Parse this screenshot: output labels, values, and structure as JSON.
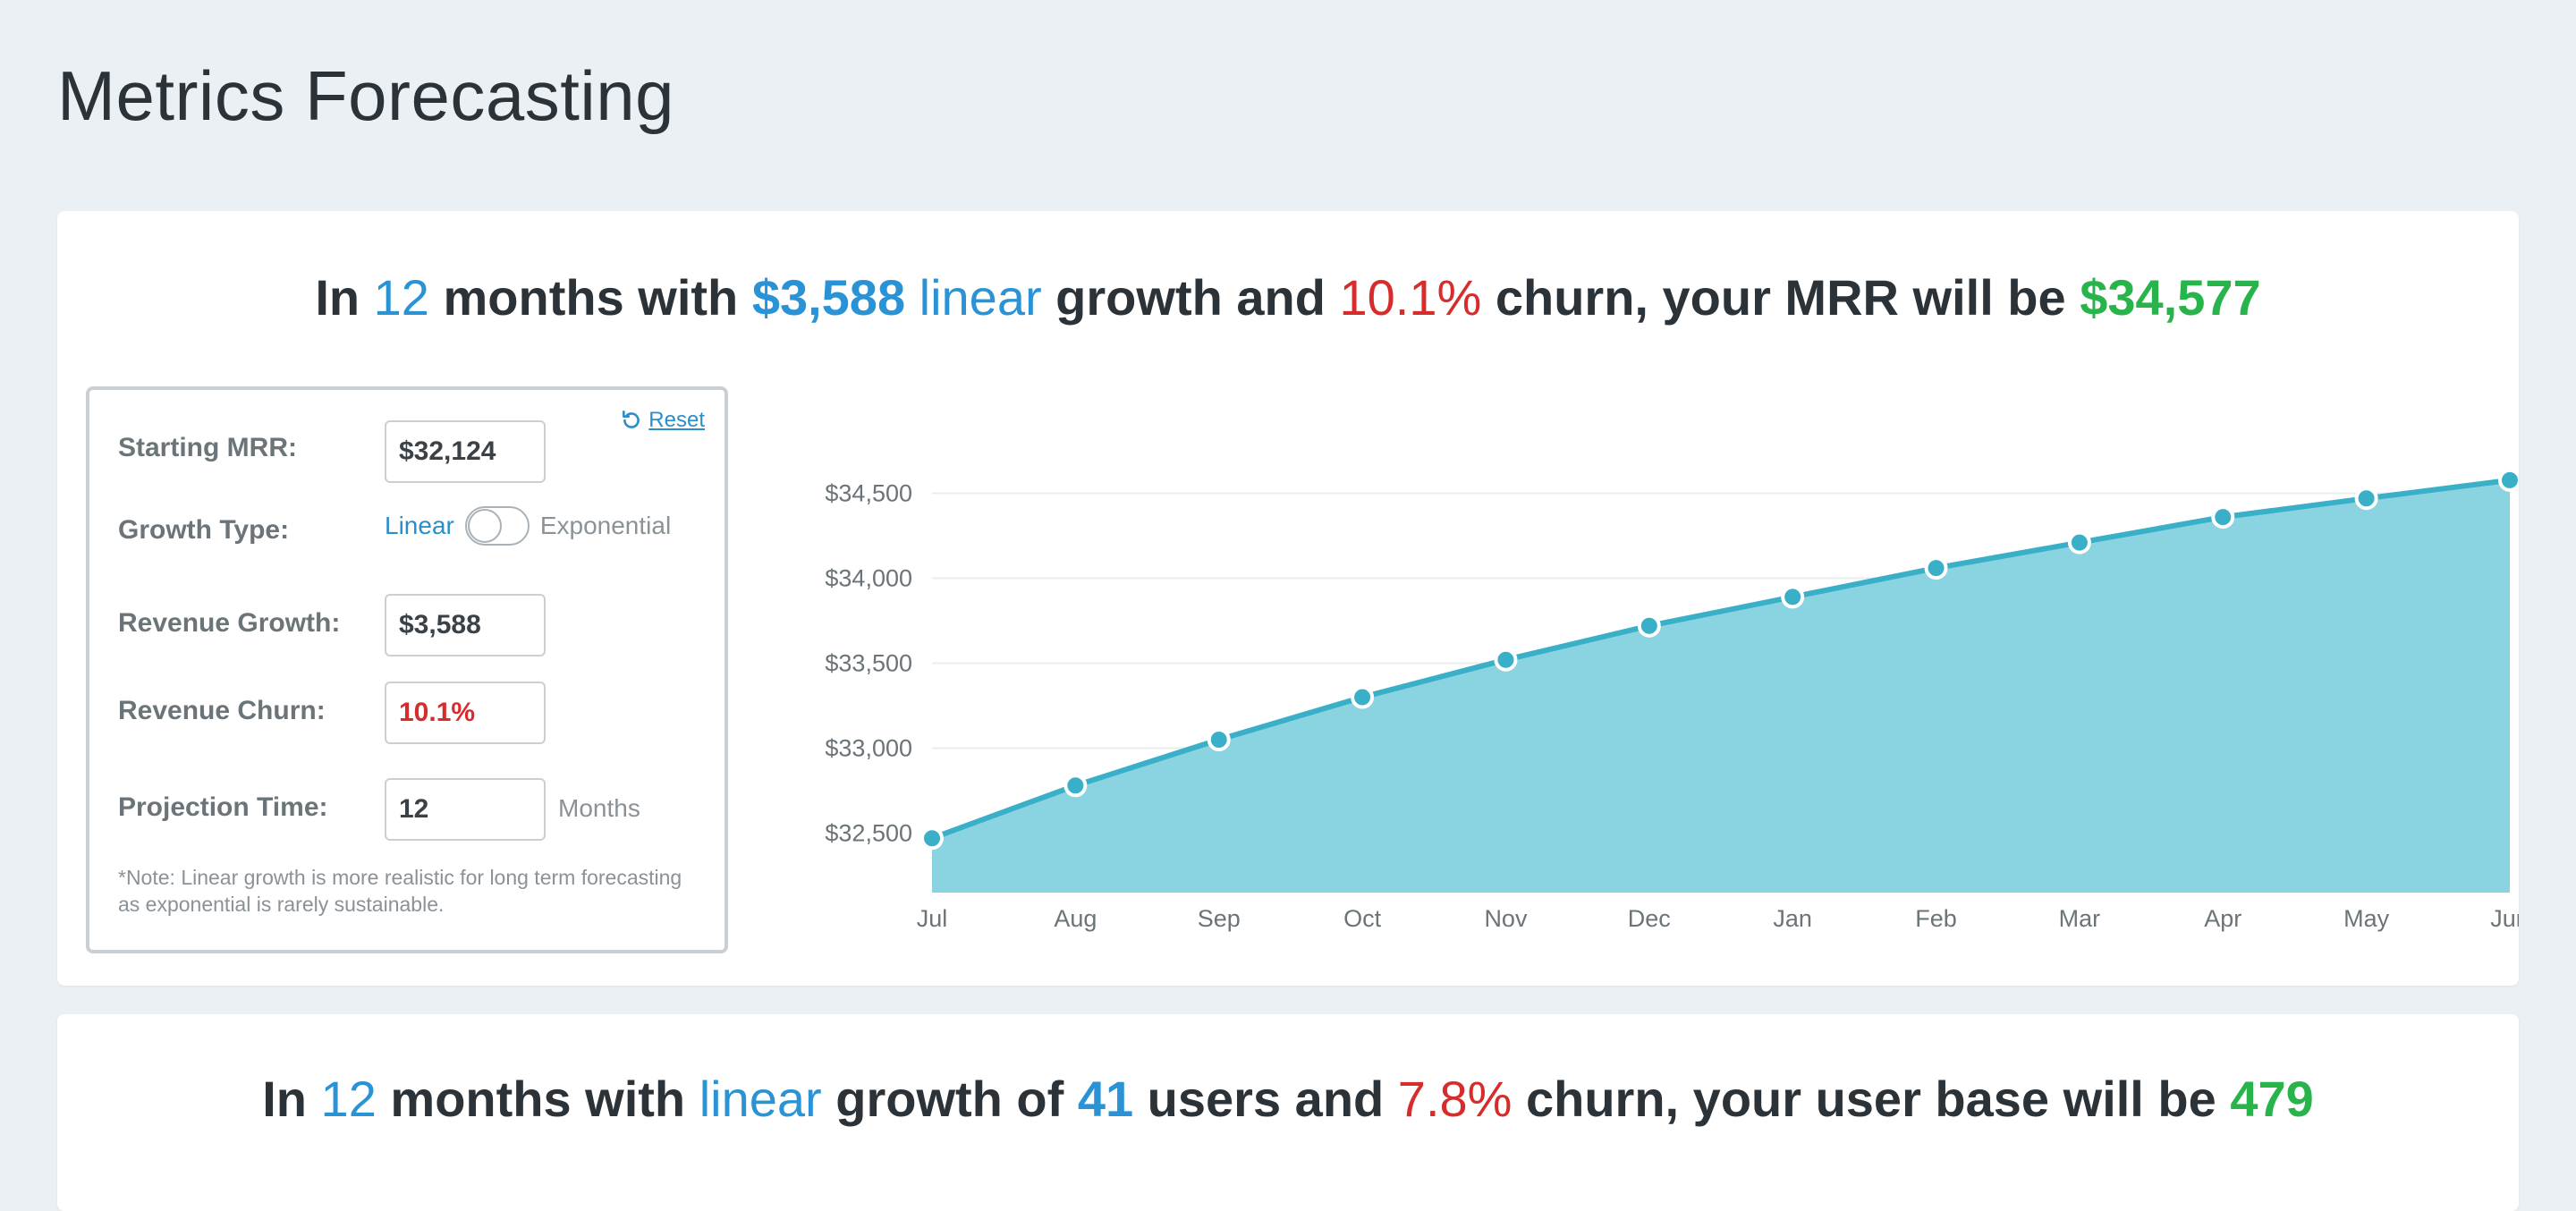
{
  "page": {
    "title": "Metrics Forecasting"
  },
  "mrr_card": {
    "headline": {
      "p1": "In ",
      "months": "12",
      "p2": " months with ",
      "growth": "$3,588",
      "type": " linear",
      "p3": " growth and ",
      "churn": "10.1%",
      "p4": " churn, your MRR will be ",
      "result": "$34,577"
    },
    "controls": {
      "reset_label": "Reset",
      "starting_mrr": {
        "label": "Starting MRR:",
        "value": "$32,124"
      },
      "growth_type": {
        "label": "Growth Type:",
        "left": "Linear",
        "right": "Exponential"
      },
      "revenue_growth": {
        "label": "Revenue Growth:",
        "value": "$3,588"
      },
      "revenue_churn": {
        "label": "Revenue Churn:",
        "value": "10.1%"
      },
      "projection_time": {
        "label": "Projection Time:",
        "value": "12",
        "suffix": "Months"
      },
      "note": "*Note: Linear growth is more realistic for long term forecasting as exponential is rarely sustainable."
    }
  },
  "users_card": {
    "headline": {
      "p1": "In ",
      "months": "12",
      "p2": " months with ",
      "type": "linear",
      "p3": " growth of ",
      "growth": "41",
      "p4": " users and ",
      "churn": "7.8%",
      "p5": " churn, your user base will be ",
      "result": "479"
    }
  },
  "colors": {
    "accent_blue": "#2a93d5",
    "churn_red": "#d62c2c",
    "result_green": "#28b44b",
    "chart_fill": "#8ad3e1",
    "chart_line": "#3aafc8"
  },
  "icons": {
    "reset": "rotate-ccw-icon"
  },
  "chart_data": {
    "type": "area",
    "categories": [
      "Jul",
      "Aug",
      "Sep",
      "Oct",
      "Nov",
      "Dec",
      "Jan",
      "Feb",
      "Mar",
      "Apr",
      "May",
      "Jun"
    ],
    "values": [
      32470,
      32780,
      33050,
      33300,
      33520,
      33720,
      33890,
      34060,
      34210,
      34360,
      34470,
      34577
    ],
    "yticks": [
      32500,
      33000,
      33500,
      34000,
      34500
    ],
    "ytick_labels": [
      "$32,500",
      "$33,000",
      "$33,500",
      "$34,000",
      "$34,500"
    ],
    "ylim": [
      32150,
      34750
    ],
    "grid": true,
    "legend": "none"
  }
}
